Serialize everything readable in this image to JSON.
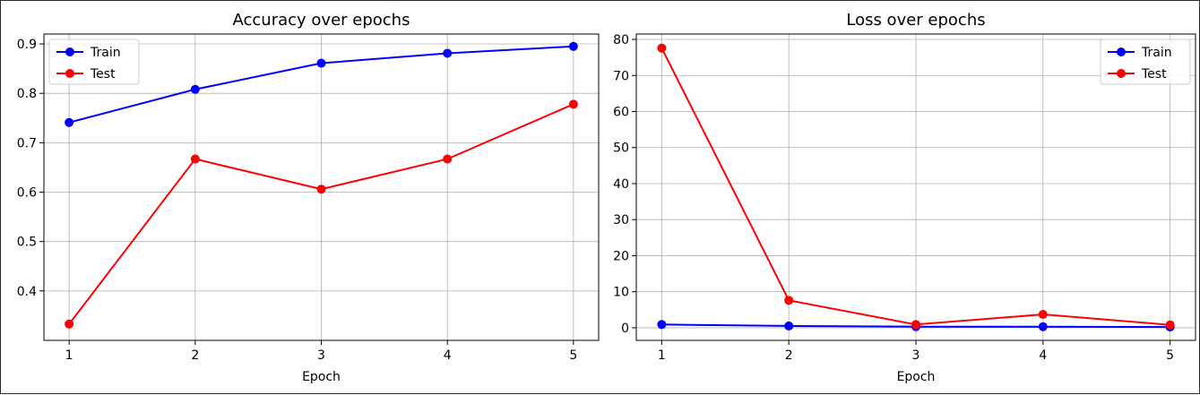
{
  "chart_data": [
    {
      "type": "line",
      "title": "Accuracy over epochs",
      "xlabel": "Epoch",
      "ylabel": "",
      "x": [
        1,
        2,
        3,
        4,
        5
      ],
      "xticks": [
        "1",
        "2",
        "3",
        "4",
        "5"
      ],
      "yticks": [
        "0.4",
        "0.5",
        "0.6",
        "0.7",
        "0.8",
        "0.9"
      ],
      "xlim": [
        0.8,
        5.2
      ],
      "ylim": [
        0.3,
        0.92
      ],
      "grid": true,
      "legend_position": "top-left",
      "series": [
        {
          "name": "Train",
          "color": "#0000ff",
          "values": [
            0.741,
            0.808,
            0.861,
            0.881,
            0.895
          ]
        },
        {
          "name": "Test",
          "color": "#ff0000",
          "values": [
            0.333,
            0.667,
            0.606,
            0.667,
            0.778
          ]
        }
      ]
    },
    {
      "type": "line",
      "title": "Loss over epochs",
      "xlabel": "Epoch",
      "ylabel": "",
      "x": [
        1,
        2,
        3,
        4,
        5
      ],
      "xticks": [
        "1",
        "2",
        "3",
        "4",
        "5"
      ],
      "yticks": [
        "0",
        "10",
        "20",
        "30",
        "40",
        "50",
        "60",
        "70",
        "80"
      ],
      "xlim": [
        0.8,
        5.2
      ],
      "ylim": [
        -3.5,
        81.5
      ],
      "grid": true,
      "legend_position": "top-right",
      "series": [
        {
          "name": "Train",
          "color": "#0000ff",
          "values": [
            0.9,
            0.5,
            0.3,
            0.3,
            0.2
          ]
        },
        {
          "name": "Test",
          "color": "#ff0000",
          "values": [
            77.6,
            7.6,
            0.9,
            3.7,
            0.8
          ]
        }
      ]
    }
  ]
}
